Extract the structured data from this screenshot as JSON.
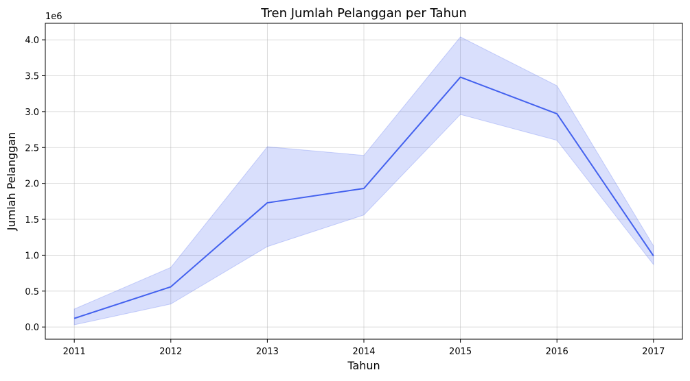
{
  "chart_data": {
    "type": "line",
    "title": "Tren Jumlah Pelanggan per Tahun",
    "xlabel": "Tahun",
    "ylabel": "Jumlah Pelanggan",
    "y_offset_label": "1e6",
    "x": [
      2011,
      2012,
      2013,
      2014,
      2015,
      2016,
      2017
    ],
    "x_tick_labels": [
      "2011",
      "2012",
      "2013",
      "2014",
      "2015",
      "2016",
      "2017"
    ],
    "y_ticks": [
      0.0,
      0.5,
      1.0,
      1.5,
      2.0,
      2.5,
      3.0,
      3.5,
      4.0
    ],
    "y_tick_labels": [
      "0.0",
      "0.5",
      "1.0",
      "1.5",
      "2.0",
      "2.5",
      "3.0",
      "3.5",
      "4.0"
    ],
    "ylim": [
      -0.17,
      4.23
    ],
    "xlim": [
      2010.7,
      2017.3
    ],
    "grid": true,
    "series": [
      {
        "values": [
          0.12,
          0.56,
          1.73,
          1.93,
          3.48,
          2.97,
          0.99
        ],
        "ci_lower": [
          0.03,
          0.32,
          1.12,
          1.56,
          2.96,
          2.6,
          0.87
        ],
        "ci_upper": [
          0.25,
          0.83,
          2.51,
          2.39,
          4.04,
          3.36,
          1.13
        ],
        "color": "#4361ee",
        "band_color": "#4361ee"
      }
    ]
  }
}
